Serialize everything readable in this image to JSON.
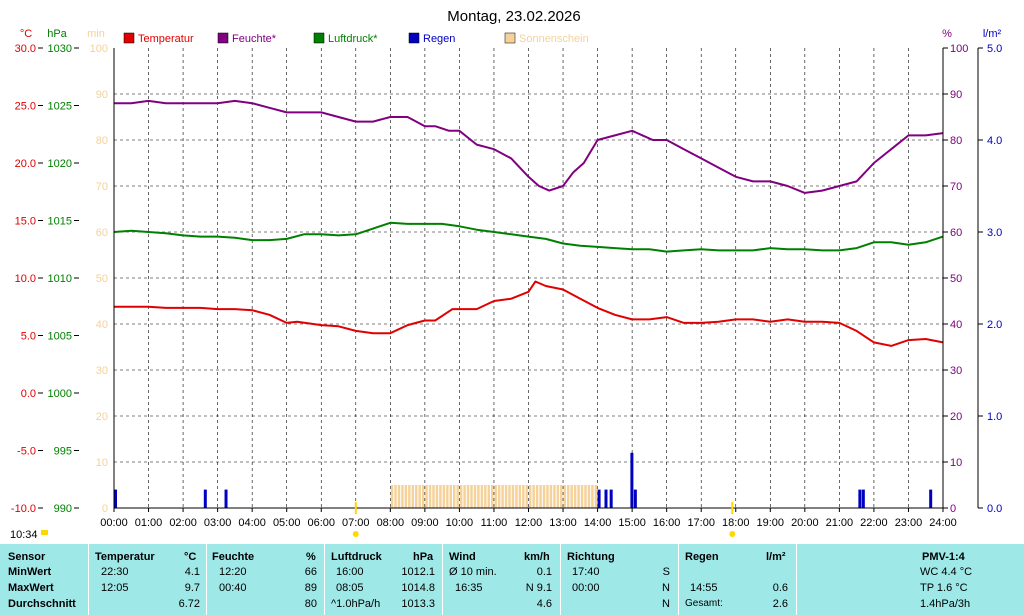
{
  "chart_data": {
    "type": "line",
    "title": "Montag, 23.02.2026",
    "axes": {
      "temp": {
        "unit": "°C",
        "range": [
          -10,
          30
        ],
        "ticks": [
          "30.0",
          "25.0",
          "20.0",
          "15.0",
          "10.0",
          "5.0",
          "0.0",
          "-5.0",
          "-10.0"
        ],
        "color": "#e00000"
      },
      "pressure": {
        "unit": "hPa",
        "range": [
          990,
          1030
        ],
        "ticks": [
          "1030",
          "1025",
          "1020",
          "1015",
          "1010",
          "1005",
          "1000",
          "995",
          "990"
        ],
        "color": "#008000"
      },
      "sunshine": {
        "unit": "min",
        "range": [
          0,
          100
        ],
        "ticks": [
          "100",
          "90",
          "80",
          "70",
          "60",
          "50",
          "40",
          "30",
          "20",
          "10",
          "0"
        ],
        "color": "#f4d29a"
      },
      "humidity": {
        "unit": "%",
        "range": [
          0,
          100
        ],
        "ticks": [
          "100",
          "90",
          "80",
          "70",
          "60",
          "50",
          "40",
          "30",
          "20",
          "10",
          "0"
        ],
        "color": "#800080"
      },
      "rain": {
        "unit": "l/m²",
        "range": [
          0,
          5
        ],
        "ticks": [
          "5.0",
          "4.0",
          "3.0",
          "2.0",
          "1.0",
          "0.0"
        ],
        "color": "#0000c0"
      }
    },
    "x_ticks": [
      "00:00",
      "01:00",
      "02:00",
      "03:00",
      "04:00",
      "05:00",
      "06:00",
      "07:00",
      "08:00",
      "09:00",
      "10:00",
      "11:00",
      "12:00",
      "13:00",
      "14:00",
      "15:00",
      "16:00",
      "17:00",
      "18:00",
      "19:00",
      "20:00",
      "21:00",
      "22:00",
      "23:00",
      "24:00"
    ],
    "x_range": [
      0,
      24
    ],
    "grid": true,
    "legend_position": "top",
    "current_time_label": "10:34",
    "sunrise_hour": 7.0,
    "sunset_hour": 17.9,
    "series": [
      {
        "name": "Temperatur",
        "axis": "temp",
        "color": "#e00000",
        "x": [
          0,
          0.5,
          1,
          1.5,
          2,
          2.5,
          3,
          3.5,
          4,
          4.5,
          5,
          5.3,
          6,
          6.5,
          7,
          7.5,
          8,
          8.5,
          9,
          9.3,
          9.8,
          10.5,
          11,
          11.5,
          12,
          12.2,
          12.5,
          13,
          13.5,
          14,
          14.5,
          15,
          15.5,
          16,
          16.5,
          17,
          17.5,
          18,
          18.5,
          19,
          19.5,
          20,
          20.5,
          21,
          21.5,
          22,
          22.5,
          23,
          23.5,
          24
        ],
        "values": [
          7.5,
          7.5,
          7.5,
          7.4,
          7.4,
          7.4,
          7.3,
          7.3,
          7.2,
          6.8,
          6.1,
          6.2,
          5.9,
          5.8,
          5.4,
          5.2,
          5.2,
          5.9,
          6.3,
          6.3,
          7.3,
          7.3,
          8.0,
          8.2,
          8.8,
          9.7,
          9.3,
          9.0,
          8.2,
          7.4,
          6.8,
          6.4,
          6.4,
          6.6,
          6.1,
          6.1,
          6.2,
          6.4,
          6.4,
          6.2,
          6.4,
          6.2,
          6.2,
          6.1,
          5.4,
          4.4,
          4.1,
          4.6,
          4.7,
          4.4
        ]
      },
      {
        "name": "Feuchte*",
        "axis": "humidity",
        "color": "#800080",
        "x": [
          0,
          0.5,
          1,
          1.5,
          2,
          2.5,
          3,
          3.5,
          4,
          4.5,
          5,
          5.5,
          6,
          6.5,
          7,
          7.5,
          8,
          8.5,
          9,
          9.3,
          9.7,
          10,
          10.5,
          11,
          11.5,
          12,
          12.3,
          12.6,
          13,
          13.3,
          13.6,
          14,
          14.5,
          15,
          15.3,
          15.6,
          16,
          16.5,
          17,
          17.5,
          18,
          18.5,
          19,
          19.5,
          20,
          20.5,
          21,
          21.5,
          22,
          22.5,
          23,
          23.5,
          24
        ],
        "values": [
          88,
          88,
          88.5,
          88,
          88,
          88,
          88,
          88.5,
          88,
          87,
          86,
          86,
          86,
          85,
          84,
          84,
          85,
          85,
          83,
          83,
          82,
          82,
          79,
          78,
          76,
          72,
          70,
          69,
          70,
          73,
          75,
          80,
          81,
          82,
          81,
          80,
          80,
          78,
          76,
          74,
          72,
          71,
          71,
          70,
          68.5,
          69,
          70,
          71,
          75,
          78,
          81,
          81,
          81.5
        ]
      },
      {
        "name": "Luftdruck*",
        "axis": "pressure",
        "color": "#008000",
        "x": [
          0,
          0.5,
          1,
          1.5,
          2,
          2.5,
          3,
          3.5,
          4,
          4.5,
          5,
          5.5,
          6,
          6.5,
          7,
          7.5,
          8,
          8.5,
          9,
          9.5,
          10,
          10.5,
          11,
          11.5,
          12,
          12.5,
          13,
          13.5,
          14,
          14.5,
          15,
          15.5,
          16,
          16.5,
          17,
          17.5,
          18,
          18.5,
          19,
          19.5,
          20,
          20.5,
          21,
          21.5,
          22,
          22.5,
          23,
          23.5,
          24
        ],
        "values": [
          1014.0,
          1014.1,
          1014.0,
          1013.9,
          1013.7,
          1013.6,
          1013.6,
          1013.5,
          1013.3,
          1013.3,
          1013.4,
          1013.8,
          1013.8,
          1013.7,
          1013.8,
          1014.3,
          1014.8,
          1014.7,
          1014.7,
          1014.7,
          1014.5,
          1014.2,
          1014.0,
          1013.8,
          1013.6,
          1013.4,
          1013.0,
          1012.8,
          1012.7,
          1012.6,
          1012.5,
          1012.5,
          1012.3,
          1012.4,
          1012.5,
          1012.4,
          1012.4,
          1012.4,
          1012.6,
          1012.5,
          1012.5,
          1012.4,
          1012.4,
          1012.6,
          1013.1,
          1013.1,
          1012.9,
          1013.1,
          1013.6
        ]
      },
      {
        "name": "Regen",
        "axis": "rain",
        "color": "#0000c0",
        "x": [
          0,
          2.6,
          3.2,
          14.0,
          14.2,
          14.35,
          14.95,
          15.05,
          21.55,
          21.65,
          23.6
        ],
        "values": [
          0.2,
          0.2,
          0.2,
          0.2,
          0.2,
          0.2,
          0.6,
          0.2,
          0.2,
          0.2,
          0.2
        ]
      },
      {
        "name": "Sonnenschein",
        "axis": "sunshine",
        "color": "#f4d29a",
        "x_start": 8.0,
        "x_end": 14.0,
        "step": 0.1,
        "value": 5
      }
    ]
  },
  "table": {
    "sensor": {
      "header": "Sensor",
      "rows": [
        "MinWert",
        "MaxWert",
        "Durchschnitt"
      ]
    },
    "temperatur": {
      "header": "Temperatur",
      "unit": "°C",
      "times": [
        "22:30",
        "12:05",
        ""
      ],
      "values": [
        "4.1",
        "9.7",
        "6.72"
      ]
    },
    "feuchte": {
      "header": "Feuchte",
      "unit": "%",
      "times": [
        "12:20",
        "00:40",
        ""
      ],
      "values": [
        "66",
        "89",
        "80"
      ]
    },
    "luftdruck": {
      "header": "Luftdruck",
      "unit": "hPa",
      "times": [
        "16:00",
        "08:05",
        "^1.0hPa/h"
      ],
      "values": [
        "1012.1",
        "1014.8",
        "1013.3"
      ]
    },
    "wind": {
      "header": "Wind",
      "unit": "km/h",
      "times": [
        "Ø 10 min.",
        "16:35",
        ""
      ],
      "values": [
        "0.1",
        "N 9.1",
        "4.6"
      ]
    },
    "richtung": {
      "header": "Richtung",
      "times": [
        "17:40",
        "00:00",
        ""
      ],
      "values": [
        "S",
        "N",
        "N"
      ]
    },
    "regen": {
      "header": "Regen",
      "unit": "l/m²",
      "times": [
        "",
        "14:55",
        "Gesamt:"
      ],
      "values": [
        "",
        "0.6",
        "2.6"
      ]
    },
    "pmv": {
      "header": "PMV-1:4",
      "values": [
        "WC 4.4 °C",
        "TP 1.6 °C",
        "1.4hPa/3h"
      ]
    }
  }
}
